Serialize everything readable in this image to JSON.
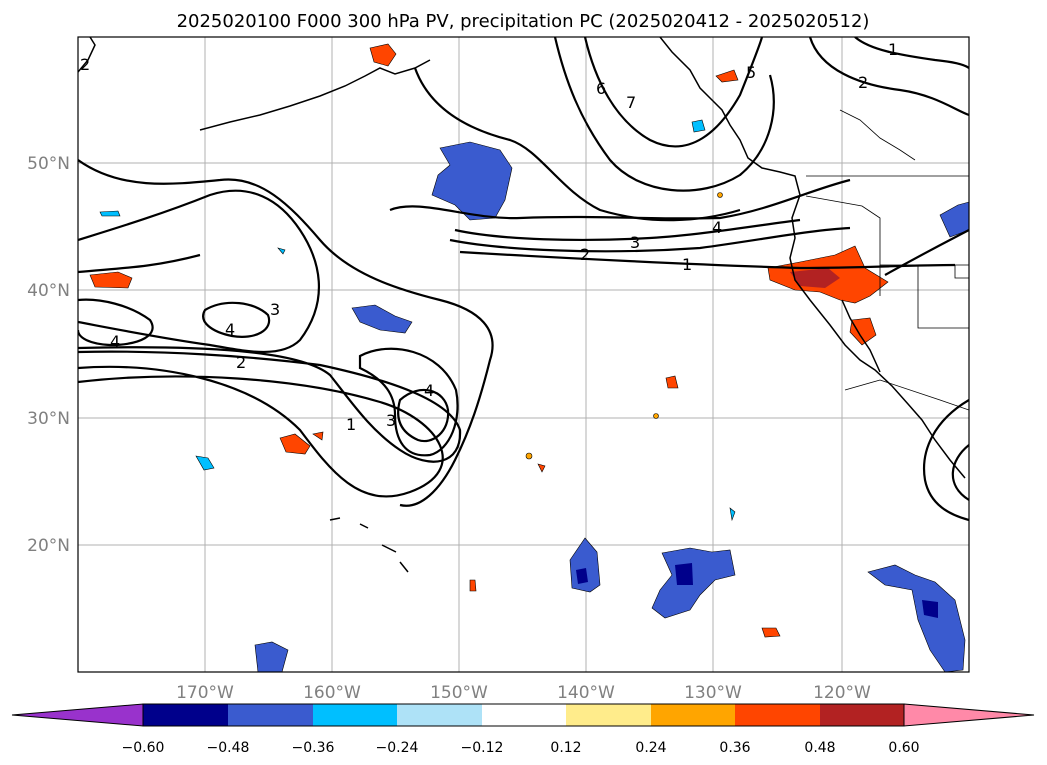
{
  "title": "2025020100 F000 300 hPa PV, precipitation PC (2025020412 - 2025020512)",
  "lat_ticks": [
    "50°N",
    "40°N",
    "30°N",
    "20°N"
  ],
  "lon_ticks": [
    "170°W",
    "160°W",
    "150°W",
    "140°W",
    "130°W",
    "120°W"
  ],
  "colorbar": {
    "tick_labels": [
      "−0.60",
      "−0.48",
      "−0.36",
      "−0.24",
      "−0.12",
      "0.12",
      "0.24",
      "0.36",
      "0.48",
      "0.60"
    ],
    "colors": [
      "#9932cc",
      "#00008b",
      "#3a5bcf",
      "#00bfff",
      "#aee2f7",
      "#ffffff",
      "#ffec8b",
      "#ffa500",
      "#ff4500",
      "#b22222",
      "#ff89a8"
    ]
  },
  "contour_labels": [
    "1",
    "2",
    "3",
    "4",
    "5",
    "6",
    "7",
    "2",
    "1",
    "2",
    "3",
    "4",
    "4",
    "4",
    "3",
    "2",
    "1",
    "3",
    "4"
  ]
}
